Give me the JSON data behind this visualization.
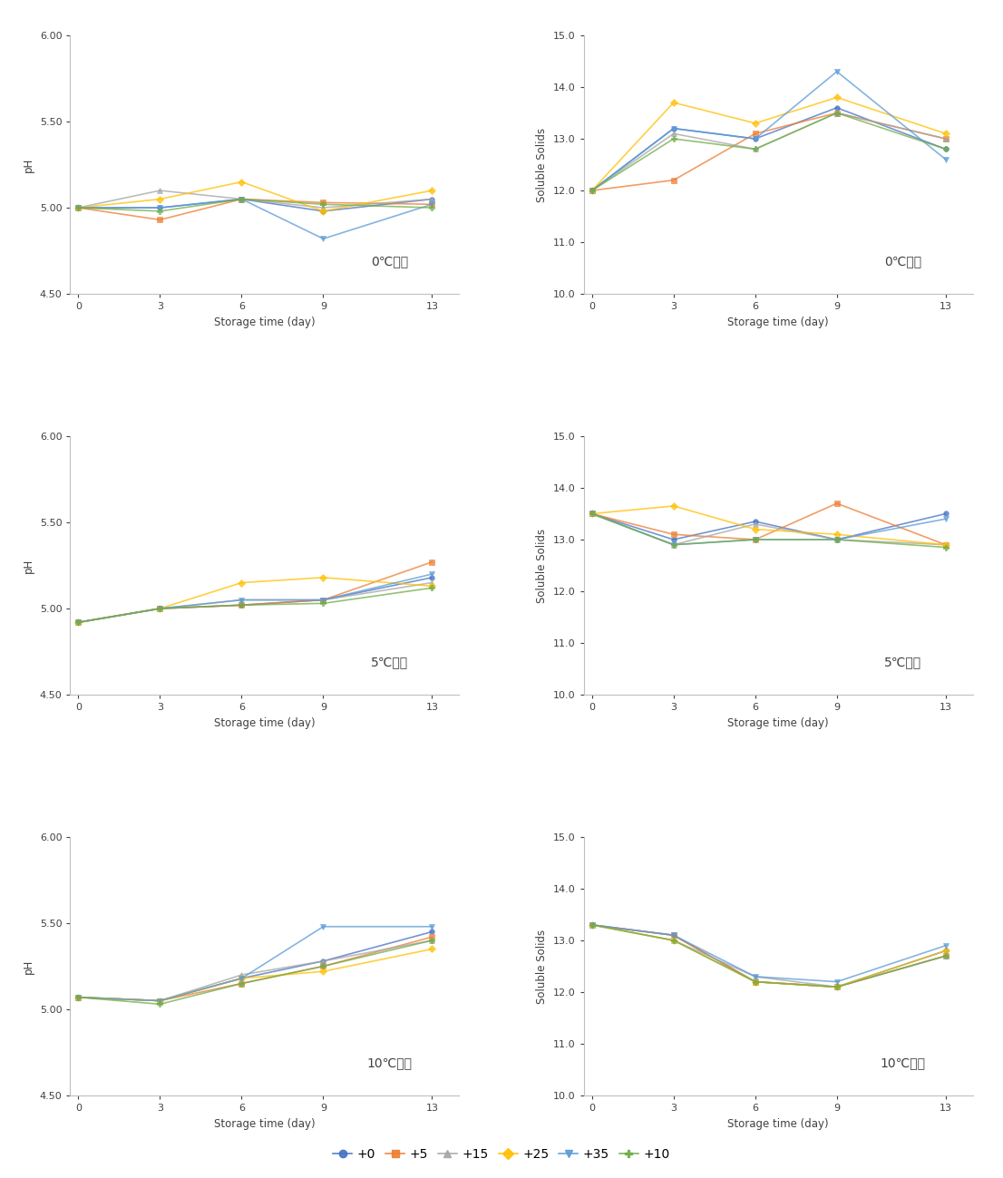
{
  "x": [
    0,
    3,
    6,
    9,
    13
  ],
  "ph_0C": [
    [
      5.0,
      5.0,
      5.05,
      4.98,
      5.05
    ],
    [
      5.0,
      4.93,
      5.05,
      5.03,
      5.02
    ],
    [
      5.0,
      5.1,
      5.05,
      5.0,
      5.05
    ],
    [
      5.0,
      5.05,
      5.15,
      4.98,
      5.1
    ],
    [
      5.0,
      5.0,
      5.05,
      4.82,
      5.02
    ],
    [
      5.0,
      4.98,
      5.05,
      5.02,
      5.0
    ]
  ],
  "ss_0C": [
    [
      12.0,
      13.2,
      13.0,
      13.6,
      12.8
    ],
    [
      12.0,
      12.2,
      13.1,
      13.5,
      13.0
    ],
    [
      12.0,
      13.1,
      12.8,
      13.5,
      13.0
    ],
    [
      12.0,
      13.7,
      13.3,
      13.8,
      13.1
    ],
    [
      12.0,
      13.2,
      13.0,
      14.3,
      12.6
    ],
    [
      12.0,
      13.0,
      12.8,
      13.5,
      12.8
    ]
  ],
  "ph_5C": [
    [
      4.92,
      5.0,
      5.02,
      5.05,
      5.18
    ],
    [
      4.92,
      5.0,
      5.02,
      5.05,
      5.27
    ],
    [
      4.92,
      5.0,
      5.05,
      5.05,
      5.15
    ],
    [
      4.92,
      5.0,
      5.15,
      5.18,
      5.13
    ],
    [
      4.92,
      5.0,
      5.05,
      5.05,
      5.2
    ],
    [
      4.92,
      5.0,
      5.02,
      5.03,
      5.12
    ]
  ],
  "ss_5C": [
    [
      13.5,
      13.0,
      13.35,
      13.0,
      13.5
    ],
    [
      13.5,
      13.1,
      13.0,
      13.7,
      12.9
    ],
    [
      13.5,
      12.9,
      13.3,
      13.0,
      12.9
    ],
    [
      13.5,
      13.65,
      13.2,
      13.1,
      12.9
    ],
    [
      13.5,
      12.9,
      13.0,
      13.0,
      13.4
    ],
    [
      13.5,
      12.9,
      13.0,
      13.0,
      12.85
    ]
  ],
  "ph_10C": [
    [
      5.07,
      5.05,
      5.18,
      5.28,
      5.45
    ],
    [
      5.07,
      5.05,
      5.15,
      5.25,
      5.42
    ],
    [
      5.07,
      5.05,
      5.2,
      5.28,
      5.4
    ],
    [
      5.07,
      5.05,
      5.18,
      5.22,
      5.35
    ],
    [
      5.07,
      5.05,
      5.18,
      5.48,
      5.48
    ],
    [
      5.07,
      5.03,
      5.15,
      5.25,
      5.4
    ]
  ],
  "ss_10C": [
    [
      13.3,
      13.1,
      12.2,
      12.1,
      12.8
    ],
    [
      13.3,
      13.1,
      12.2,
      12.1,
      12.7
    ],
    [
      13.3,
      13.0,
      12.3,
      12.1,
      12.7
    ],
    [
      13.3,
      13.0,
      12.2,
      12.1,
      12.8
    ],
    [
      13.3,
      13.1,
      12.3,
      12.2,
      12.9
    ],
    [
      13.3,
      13.0,
      12.2,
      12.1,
      12.7
    ]
  ],
  "colors": [
    "#4472C4",
    "#ED7D31",
    "#A5A5A5",
    "#FFC000",
    "#5B9BD5",
    "#70AD47"
  ],
  "alphas": [
    0.75,
    0.75,
    0.75,
    0.75,
    0.75,
    0.75
  ],
  "markers": [
    "o",
    "s",
    "^",
    "D",
    "v",
    "P"
  ],
  "ph_ylim": [
    4.5,
    6.0
  ],
  "ss_ylim": [
    10.0,
    15.0
  ],
  "ph_yticks": [
    4.5,
    5.0,
    5.5,
    6.0
  ],
  "ss_yticks": [
    10.0,
    11.0,
    12.0,
    13.0,
    14.0,
    15.0
  ],
  "xlabel": "Storage time (day)",
  "ph_ylabel": "pH",
  "ss_ylabel": "Soluble Solids",
  "xticks": [
    0,
    3,
    6,
    9,
    13
  ],
  "annotations": [
    "0℃저장",
    "0℃저장",
    "5℃저장",
    "5℃저장",
    "10℃저장",
    "10℃저장"
  ],
  "legend_labels": [
    "+0",
    "+5",
    "+15",
    "+25",
    "+35",
    "+10"
  ],
  "background_color": "#ffffff",
  "line_width": 1.2,
  "marker_size": 4
}
